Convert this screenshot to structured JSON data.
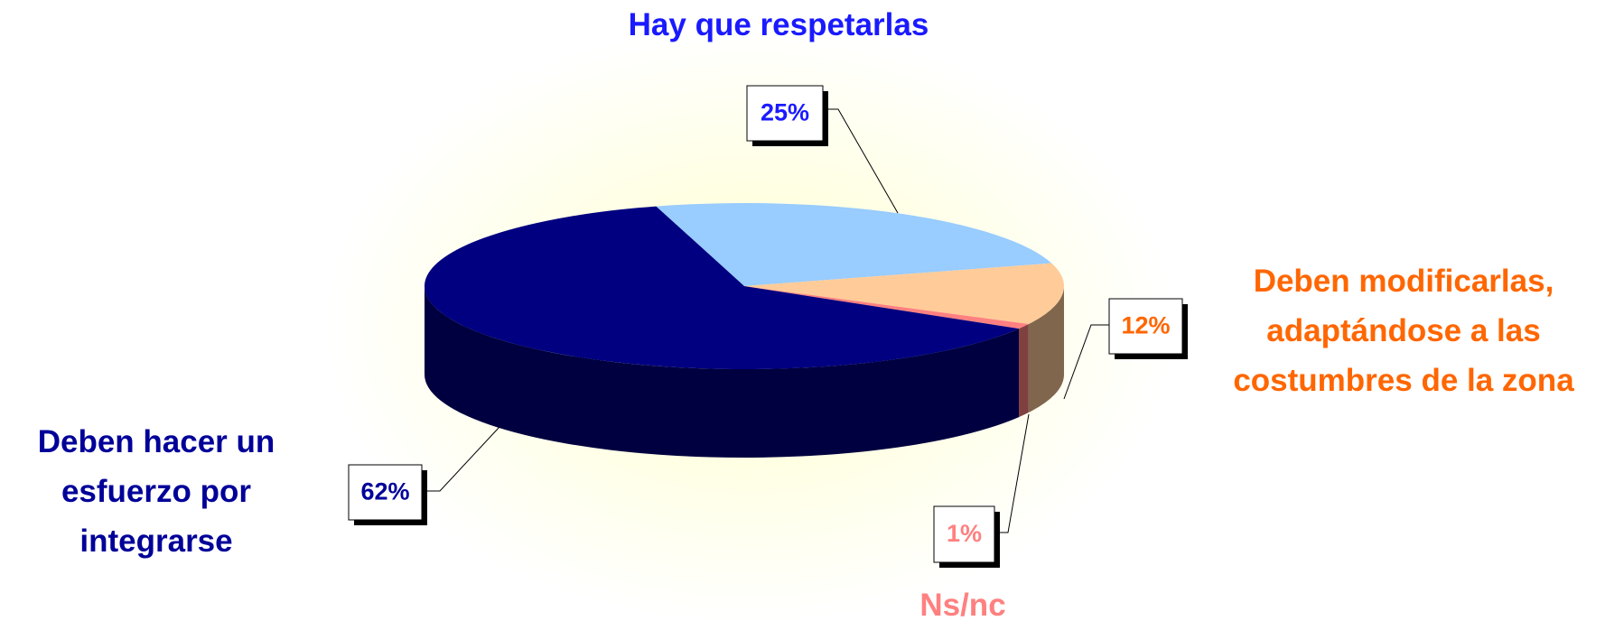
{
  "chart_data": {
    "type": "pie",
    "categories": [
      "Hay que respetarlas",
      "Deben modificarlas, adaptándose a las costumbres de la zona",
      "Ns/nc",
      "Deben hacer un esfuerzo por integrarse"
    ],
    "values": [
      25,
      12,
      1,
      62
    ],
    "value_labels": [
      "25%",
      "12%",
      "1%",
      "62%"
    ],
    "colors": [
      "#99ccff",
      "#ffcc99",
      "#ff8080",
      "#000080"
    ],
    "label_colors": [
      "#1a1aff",
      "#ff6600",
      "#ff8080",
      "#000099"
    ],
    "three_d": true
  }
}
